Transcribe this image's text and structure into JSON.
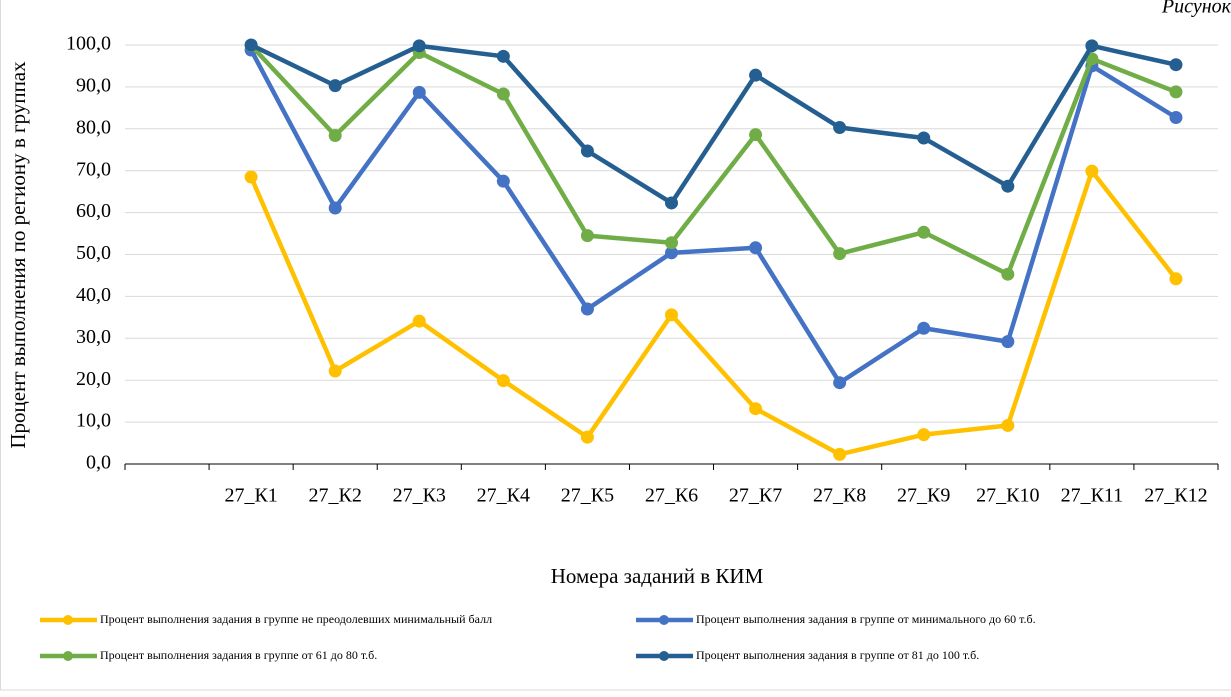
{
  "chart_data": {
    "type": "line",
    "annotation": "Рисунок",
    "y_label": "Процент выполнения по региону в группах",
    "x_label": "Номера заданий в КИМ",
    "categories": [
      null,
      "27_К1",
      "27_К2",
      "27_К3",
      "27_К4",
      "27_К5",
      "27_К6",
      "27_К7",
      "27_К8",
      "27_К9",
      "27_К10",
      "27_К11",
      "27_К12"
    ],
    "series": [
      {
        "name": "Процент выполнения задания в группе не преодолевших минимальный балл",
        "color": "#ffc000",
        "values": [
          null,
          68.5,
          22.2,
          34.1,
          19.9,
          6.4,
          35.6,
          13.2,
          2.3,
          7.0,
          9.2,
          69.9,
          44.2
        ]
      },
      {
        "name": "Процент выполнения задания в группе от минимального до 60 т.б.",
        "color": "#4472c4",
        "values": [
          null,
          98.8,
          61.1,
          88.7,
          67.5,
          37.0,
          50.4,
          51.6,
          19.4,
          32.4,
          29.2,
          95.0,
          82.7
        ]
      },
      {
        "name": "Процент выполнения задания в группе от 61 до 80 т.б.",
        "color": "#70ad47",
        "values": [
          null,
          99.9,
          78.4,
          98.2,
          88.3,
          54.5,
          52.8,
          78.6,
          50.2,
          55.3,
          45.3,
          96.7,
          88.8
        ]
      },
      {
        "name": "Процент выполнения задания в группе от 81 до 100 т.б.",
        "color": "#255e91",
        "values": [
          null,
          100.0,
          90.3,
          99.8,
          97.3,
          74.7,
          62.3,
          92.8,
          80.3,
          77.8,
          66.3,
          99.8,
          95.3
        ]
      }
    ],
    "ylim": [
      0,
      100
    ],
    "yticks": [
      {
        "value": 0,
        "label": "0,0"
      },
      {
        "value": 10,
        "label": "10,0"
      },
      {
        "value": 20,
        "label": "20,0"
      },
      {
        "value": 30,
        "label": "30,0"
      },
      {
        "value": 40,
        "label": "40,0"
      },
      {
        "value": 50,
        "label": "50,0"
      },
      {
        "value": 60,
        "label": "60,0"
      },
      {
        "value": 70,
        "label": "70,0"
      },
      {
        "value": 80,
        "label": "80,0"
      },
      {
        "value": 90,
        "label": "90,0"
      },
      {
        "value": 100,
        "label": "100,0"
      }
    ],
    "grid": true
  }
}
